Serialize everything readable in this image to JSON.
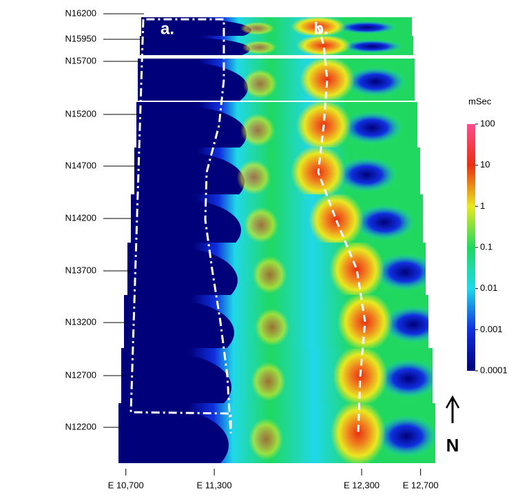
{
  "chart_data": {
    "type": "stacked-sections",
    "sections": [
      "N16200",
      "N15950",
      "N15700",
      "N15200",
      "N14700",
      "N14200",
      "N13700",
      "N13200",
      "N12700",
      "N12200"
    ],
    "xlim": [
      10650,
      12800
    ],
    "xticks": [
      {
        "value": 10700,
        "label": "E 10,700"
      },
      {
        "value": 11300,
        "label": "E 11,300"
      },
      {
        "value": 12300,
        "label": "E 12,300"
      },
      {
        "value": 12700,
        "label": "E 12,700"
      }
    ],
    "annotations": [
      "a.",
      "b."
    ],
    "north_label": "N",
    "colorbar": {
      "label": "mSec",
      "log_scale": true,
      "clim": [
        0.0001,
        100
      ],
      "ticks": [
        0.0001,
        0.001,
        0.01,
        0.1,
        1,
        10,
        100
      ],
      "colors": [
        "#00007a",
        "#1030e0",
        "#20d8e8",
        "#20d860",
        "#e8e820",
        "#e83010",
        "#ff4d8f"
      ]
    }
  }
}
